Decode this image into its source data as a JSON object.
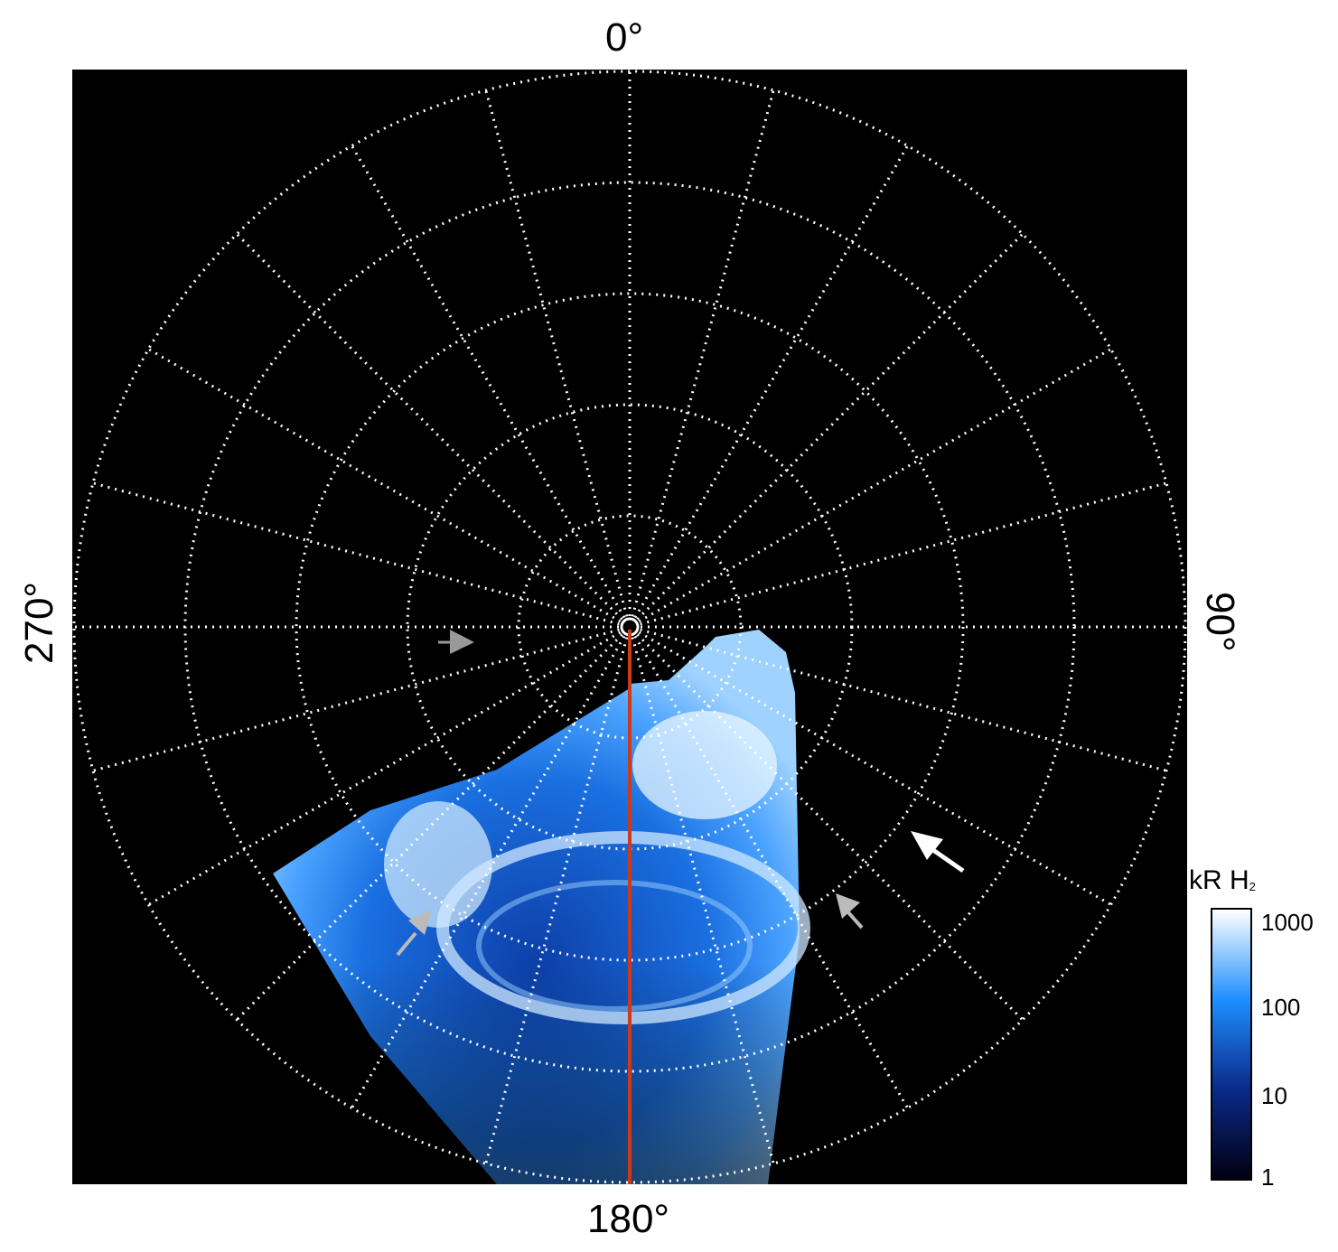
{
  "axes": {
    "label_top": "0°",
    "label_right": "90°",
    "label_bottom": "180°",
    "label_left": "270°"
  },
  "grid": {
    "style": "dotted white",
    "rings": 5,
    "meridian_step_deg": 15
  },
  "colorbar": {
    "title": "kR H",
    "title_subscript": "2",
    "scale": "log",
    "ticks": [
      "1000",
      "100",
      "10",
      "1"
    ],
    "colors": [
      "#ffffff",
      "#1e90ff",
      "#0a2a8a",
      "#000010"
    ]
  },
  "marker_colors": {
    "meridian_line": "#cc3a1a",
    "arrow_gray": "#aaaaaa",
    "arrow_white": "#ffffff"
  }
}
